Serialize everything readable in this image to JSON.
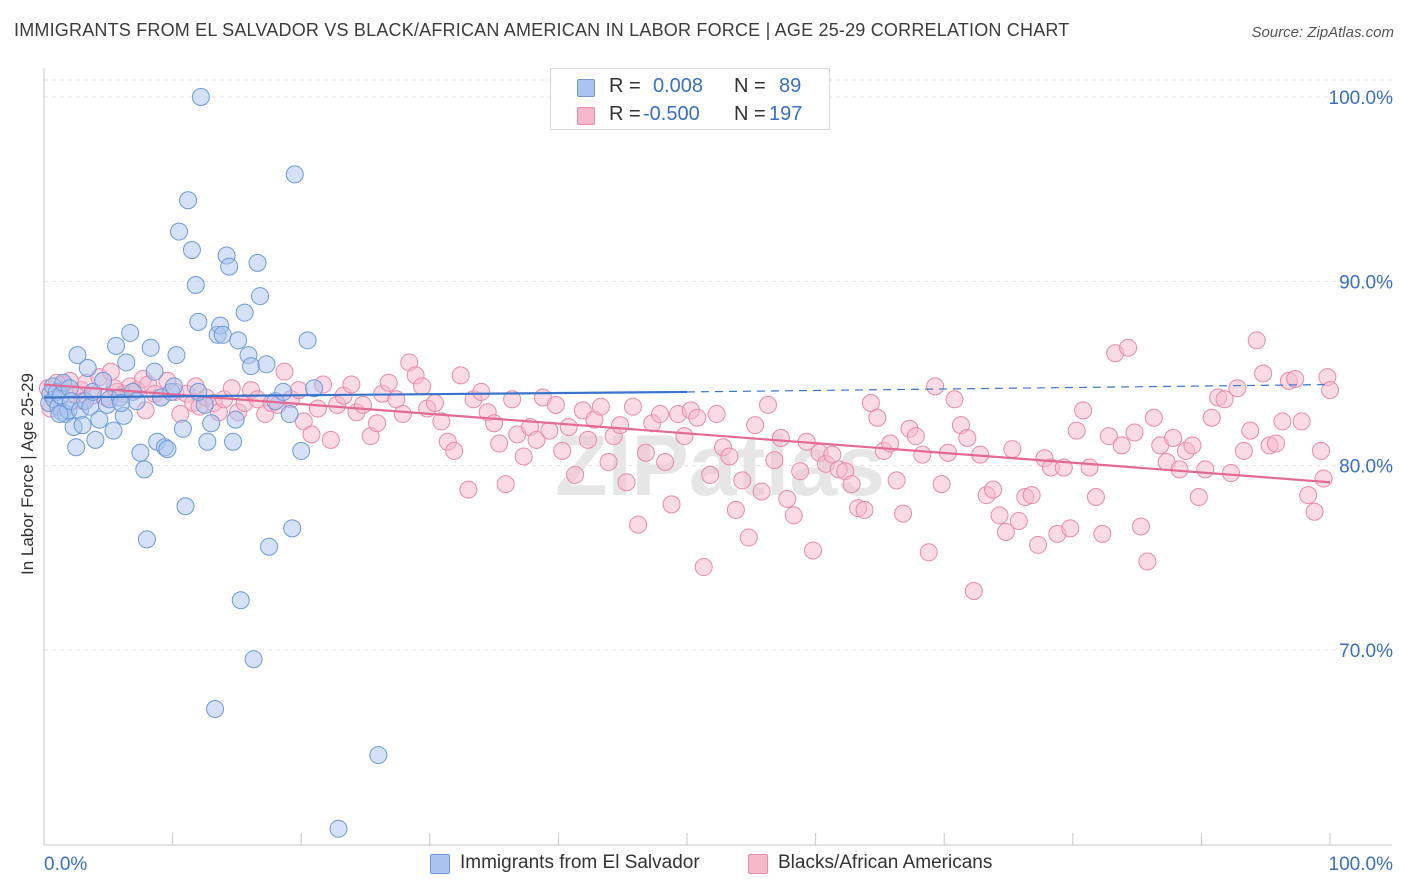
{
  "title": "IMMIGRANTS FROM EL SALVADOR VS BLACK/AFRICAN AMERICAN IN LABOR FORCE | AGE 25-29 CORRELATION CHART",
  "source": "Source: ZipAtlas.com",
  "watermark": "ZIPatlas",
  "stats": [
    {
      "r_label": "R =",
      "r_value": "0.008",
      "n_label": "N =",
      "n_value": "89",
      "color": "#a9c4ee"
    },
    {
      "r_label": "R =",
      "r_value": "-0.500",
      "n_label": "N =",
      "n_value": "197",
      "color": "#f5b8cb"
    }
  ],
  "legend": [
    {
      "label": "Immigrants from El Salvador",
      "color": "#a9c4ee"
    },
    {
      "label": "Blacks/African Americans",
      "color": "#f5b8cb"
    }
  ],
  "chart_data": {
    "type": "scatter",
    "title": "IMMIGRANTS FROM EL SALVADOR VS BLACK/AFRICAN AMERICAN IN LABOR FORCE | AGE 25-29 CORRELATION CHART",
    "xlabel": "",
    "ylabel": "In Labor Force | Age 25-29",
    "xlim": [
      0,
      100
    ],
    "ylim": [
      60,
      102
    ],
    "x_tick_labels": [
      "0.0%",
      "100.0%"
    ],
    "y_ticks": [
      70,
      80,
      90,
      100
    ],
    "y_tick_labels": [
      "70.0%",
      "80.0%",
      "90.0%",
      "100.0%"
    ],
    "grid": true,
    "legend_position": "bottom",
    "colors": {
      "blue_fill": "#a9c4ee",
      "blue_stroke": "#6e9ad8",
      "blue_line": "#3a75cc",
      "pink_fill": "#f5b8cb",
      "pink_stroke": "#e98aa8",
      "pink_line": "#e26a95",
      "tick_label": "#3a6fc4"
    },
    "series": [
      {
        "name": "Immigrants from El Salvador",
        "trend": {
          "x": [
            0,
            50
          ],
          "y": [
            83.7,
            84.0
          ],
          "dashed_to": [
            100,
            84.4
          ]
        },
        "points": [
          [
            0.4,
            83.4
          ],
          [
            0.5,
            83.9
          ],
          [
            0.7,
            84.3
          ],
          [
            0.8,
            83.6
          ],
          [
            1.0,
            84.0
          ],
          [
            1.1,
            83.2
          ],
          [
            1.3,
            83.8
          ],
          [
            1.4,
            82.9
          ],
          [
            1.5,
            84.5
          ],
          [
            1.7,
            82.8
          ],
          [
            1.9,
            83.0
          ],
          [
            2.0,
            84.2
          ],
          [
            2.1,
            83.5
          ],
          [
            2.3,
            82.1
          ],
          [
            2.5,
            81.0
          ],
          [
            2.6,
            86.0
          ],
          [
            2.8,
            83.0
          ],
          [
            3.0,
            82.2
          ],
          [
            3.2,
            83.5
          ],
          [
            3.4,
            85.3
          ],
          [
            3.6,
            83.2
          ],
          [
            3.8,
            84.0
          ],
          [
            4.0,
            81.4
          ],
          [
            4.3,
            82.5
          ],
          [
            4.6,
            84.6
          ],
          [
            4.9,
            83.3
          ],
          [
            5.1,
            83.6
          ],
          [
            5.4,
            81.9
          ],
          [
            5.6,
            86.5
          ],
          [
            5.9,
            83.7
          ],
          [
            6.2,
            82.7
          ],
          [
            6.4,
            85.6
          ],
          [
            6.7,
            87.2
          ],
          [
            6.9,
            84.0
          ],
          [
            7.2,
            83.5
          ],
          [
            7.5,
            80.7
          ],
          [
            7.8,
            79.8
          ],
          [
            8.0,
            76.0
          ],
          [
            8.3,
            86.4
          ],
          [
            8.6,
            85.1
          ],
          [
            8.8,
            81.3
          ],
          [
            9.1,
            83.7
          ],
          [
            9.4,
            81.0
          ],
          [
            9.6,
            80.9
          ],
          [
            9.9,
            84.0
          ],
          [
            10.1,
            84.3
          ],
          [
            10.3,
            86.0
          ],
          [
            10.5,
            92.7
          ],
          [
            10.8,
            82.0
          ],
          [
            11.0,
            77.8
          ],
          [
            11.2,
            94.4
          ],
          [
            11.5,
            91.7
          ],
          [
            11.8,
            89.8
          ],
          [
            12.0,
            87.8
          ],
          [
            12.2,
            100.0
          ],
          [
            12.5,
            83.3
          ],
          [
            12.7,
            81.3
          ],
          [
            13.0,
            82.3
          ],
          [
            13.3,
            66.8
          ],
          [
            13.5,
            87.1
          ],
          [
            13.7,
            87.6
          ],
          [
            13.9,
            87.1
          ],
          [
            14.2,
            91.4
          ],
          [
            14.4,
            90.8
          ],
          [
            14.7,
            81.3
          ],
          [
            14.9,
            82.5
          ],
          [
            15.1,
            86.8
          ],
          [
            15.3,
            72.7
          ],
          [
            15.6,
            88.3
          ],
          [
            15.9,
            86.0
          ],
          [
            16.1,
            85.4
          ],
          [
            16.3,
            69.5
          ],
          [
            16.6,
            91.0
          ],
          [
            16.8,
            89.2
          ],
          [
            17.3,
            85.5
          ],
          [
            17.5,
            75.6
          ],
          [
            18.0,
            83.5
          ],
          [
            18.6,
            84.0
          ],
          [
            19.1,
            82.8
          ],
          [
            19.3,
            76.6
          ],
          [
            19.5,
            95.8
          ],
          [
            20.0,
            80.8
          ],
          [
            20.5,
            86.8
          ],
          [
            21.0,
            84.2
          ],
          [
            22.9,
            60.3
          ],
          [
            26.0,
            64.3
          ],
          [
            1.2,
            82.8
          ],
          [
            6.0,
            83.4
          ],
          [
            12.0,
            84.0
          ]
        ]
      },
      {
        "name": "Blacks/African Americans",
        "trend": {
          "x": [
            0,
            100
          ],
          "y": [
            84.4,
            79.1
          ]
        },
        "points": [
          [
            0.3,
            84.2
          ],
          [
            0.5,
            83.1
          ],
          [
            1.5,
            84.4
          ],
          [
            2.0,
            84.6
          ],
          [
            2.4,
            83.9
          ],
          [
            2.9,
            84.1
          ],
          [
            3.3,
            84.5
          ],
          [
            3.8,
            83.8
          ],
          [
            4.3,
            84.8
          ],
          [
            4.8,
            83.7
          ],
          [
            5.2,
            85.1
          ],
          [
            5.7,
            84.0
          ],
          [
            6.2,
            83.9
          ],
          [
            6.7,
            84.3
          ],
          [
            7.2,
            84.1
          ],
          [
            7.7,
            84.7
          ],
          [
            8.1,
            84.4
          ],
          [
            8.6,
            83.9
          ],
          [
            9.1,
            83.7
          ],
          [
            9.6,
            84.6
          ],
          [
            10.2,
            84.0
          ],
          [
            10.6,
            82.8
          ],
          [
            11.1,
            83.9
          ],
          [
            11.6,
            83.4
          ],
          [
            12.1,
            83.2
          ],
          [
            12.6,
            83.7
          ],
          [
            13.2,
            83.4
          ],
          [
            13.6,
            82.9
          ],
          [
            14.0,
            83.6
          ],
          [
            14.6,
            84.2
          ],
          [
            15.1,
            82.9
          ],
          [
            15.6,
            83.4
          ],
          [
            16.1,
            84.1
          ],
          [
            16.6,
            83.6
          ],
          [
            17.2,
            82.8
          ],
          [
            17.7,
            83.4
          ],
          [
            18.2,
            83.3
          ],
          [
            18.7,
            85.1
          ],
          [
            19.2,
            83.6
          ],
          [
            19.8,
            84.1
          ],
          [
            20.2,
            82.4
          ],
          [
            20.8,
            81.7
          ],
          [
            21.3,
            83.1
          ],
          [
            21.7,
            84.4
          ],
          [
            22.3,
            81.4
          ],
          [
            22.8,
            83.3
          ],
          [
            23.3,
            83.8
          ],
          [
            23.9,
            84.4
          ],
          [
            24.3,
            82.9
          ],
          [
            24.8,
            83.3
          ],
          [
            25.4,
            81.6
          ],
          [
            25.9,
            82.3
          ],
          [
            26.3,
            83.9
          ],
          [
            26.8,
            84.5
          ],
          [
            27.4,
            83.6
          ],
          [
            27.9,
            82.8
          ],
          [
            28.4,
            85.6
          ],
          [
            28.9,
            84.9
          ],
          [
            29.4,
            84.3
          ],
          [
            29.8,
            83.1
          ],
          [
            30.4,
            83.4
          ],
          [
            30.9,
            82.4
          ],
          [
            31.4,
            81.3
          ],
          [
            31.9,
            80.8
          ],
          [
            32.4,
            84.9
          ],
          [
            33.0,
            78.7
          ],
          [
            33.4,
            83.6
          ],
          [
            34.0,
            84.0
          ],
          [
            34.5,
            82.9
          ],
          [
            35.0,
            82.3
          ],
          [
            35.4,
            81.2
          ],
          [
            35.9,
            79.0
          ],
          [
            36.4,
            83.6
          ],
          [
            36.8,
            81.7
          ],
          [
            37.3,
            80.5
          ],
          [
            37.8,
            82.1
          ],
          [
            38.3,
            81.4
          ],
          [
            38.8,
            83.7
          ],
          [
            39.3,
            81.9
          ],
          [
            39.8,
            83.3
          ],
          [
            40.3,
            80.8
          ],
          [
            40.8,
            82.1
          ],
          [
            41.3,
            79.5
          ],
          [
            41.9,
            83.0
          ],
          [
            42.3,
            81.4
          ],
          [
            42.8,
            82.5
          ],
          [
            43.3,
            83.2
          ],
          [
            43.9,
            80.2
          ],
          [
            44.3,
            81.6
          ],
          [
            44.8,
            82.2
          ],
          [
            45.3,
            79.1
          ],
          [
            45.8,
            83.2
          ],
          [
            46.2,
            76.8
          ],
          [
            46.8,
            80.7
          ],
          [
            47.3,
            82.3
          ],
          [
            47.9,
            82.8
          ],
          [
            48.3,
            80.2
          ],
          [
            48.8,
            77.9
          ],
          [
            49.3,
            82.8
          ],
          [
            49.8,
            81.6
          ],
          [
            50.3,
            83.0
          ],
          [
            50.8,
            82.6
          ],
          [
            51.3,
            74.5
          ],
          [
            51.8,
            79.5
          ],
          [
            52.3,
            82.8
          ],
          [
            52.8,
            81.0
          ],
          [
            53.3,
            80.5
          ],
          [
            53.8,
            77.6
          ],
          [
            54.3,
            79.2
          ],
          [
            54.8,
            76.1
          ],
          [
            55.3,
            82.2
          ],
          [
            55.8,
            78.6
          ],
          [
            56.3,
            83.3
          ],
          [
            56.8,
            80.3
          ],
          [
            57.3,
            81.5
          ],
          [
            57.8,
            78.2
          ],
          [
            58.3,
            77.3
          ],
          [
            58.8,
            79.7
          ],
          [
            59.3,
            81.3
          ],
          [
            59.8,
            75.4
          ],
          [
            60.3,
            80.7
          ],
          [
            60.8,
            80.1
          ],
          [
            61.3,
            80.6
          ],
          [
            61.8,
            79.8
          ],
          [
            62.3,
            79.7
          ],
          [
            62.8,
            79.0
          ],
          [
            63.3,
            77.7
          ],
          [
            63.8,
            77.6
          ],
          [
            64.3,
            83.4
          ],
          [
            64.8,
            82.6
          ],
          [
            65.3,
            80.8
          ],
          [
            65.8,
            81.2
          ],
          [
            66.3,
            79.2
          ],
          [
            66.8,
            77.4
          ],
          [
            67.3,
            82.0
          ],
          [
            67.8,
            81.6
          ],
          [
            68.3,
            80.6
          ],
          [
            68.8,
            75.3
          ],
          [
            69.3,
            84.3
          ],
          [
            69.8,
            79.0
          ],
          [
            70.3,
            80.7
          ],
          [
            70.8,
            83.6
          ],
          [
            71.3,
            82.2
          ],
          [
            71.8,
            81.5
          ],
          [
            72.3,
            73.2
          ],
          [
            72.8,
            80.6
          ],
          [
            73.3,
            78.4
          ],
          [
            73.8,
            78.7
          ],
          [
            74.3,
            77.3
          ],
          [
            74.8,
            76.4
          ],
          [
            75.3,
            80.9
          ],
          [
            75.8,
            77.0
          ],
          [
            76.3,
            78.3
          ],
          [
            76.8,
            78.4
          ],
          [
            77.3,
            75.7
          ],
          [
            77.8,
            80.4
          ],
          [
            78.3,
            79.9
          ],
          [
            78.8,
            76.3
          ],
          [
            79.3,
            79.9
          ],
          [
            79.8,
            76.6
          ],
          [
            80.3,
            81.9
          ],
          [
            80.8,
            83.0
          ],
          [
            81.3,
            79.9
          ],
          [
            81.8,
            78.3
          ],
          [
            82.3,
            76.3
          ],
          [
            82.8,
            81.6
          ],
          [
            83.3,
            86.1
          ],
          [
            83.8,
            81.1
          ],
          [
            84.3,
            86.4
          ],
          [
            84.8,
            81.8
          ],
          [
            85.3,
            76.7
          ],
          [
            85.8,
            74.8
          ],
          [
            86.3,
            82.6
          ],
          [
            86.8,
            81.1
          ],
          [
            87.3,
            80.2
          ],
          [
            87.8,
            81.5
          ],
          [
            88.3,
            79.8
          ],
          [
            88.8,
            80.8
          ],
          [
            89.3,
            81.1
          ],
          [
            89.8,
            78.3
          ],
          [
            90.3,
            79.8
          ],
          [
            90.8,
            82.6
          ],
          [
            91.3,
            83.7
          ],
          [
            91.8,
            83.6
          ],
          [
            92.3,
            79.6
          ],
          [
            92.8,
            84.2
          ],
          [
            93.3,
            80.8
          ],
          [
            93.8,
            81.9
          ],
          [
            94.3,
            86.8
          ],
          [
            94.8,
            85.0
          ],
          [
            95.3,
            81.1
          ],
          [
            95.8,
            81.2
          ],
          [
            96.3,
            82.4
          ],
          [
            96.8,
            84.6
          ],
          [
            97.3,
            84.7
          ],
          [
            97.8,
            82.4
          ],
          [
            98.3,
            78.4
          ],
          [
            98.8,
            77.5
          ],
          [
            99.3,
            80.8
          ],
          [
            99.8,
            84.8
          ],
          [
            100.0,
            84.1
          ],
          [
            1.0,
            84.5
          ],
          [
            3.0,
            83.5
          ],
          [
            5.5,
            84.2
          ],
          [
            7.9,
            83.0
          ],
          [
            11.8,
            84.3
          ],
          [
            99.5,
            79.3
          ]
        ]
      }
    ]
  }
}
